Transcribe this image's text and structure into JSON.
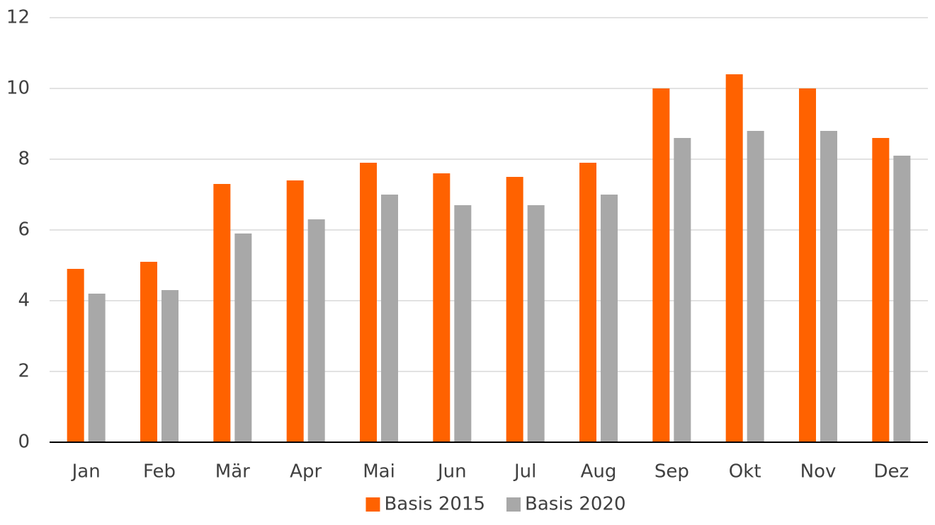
{
  "chart_data": {
    "type": "bar",
    "categories": [
      "Jan",
      "Feb",
      "Mär",
      "Apr",
      "Mai",
      "Jun",
      "Jul",
      "Aug",
      "Sep",
      "Okt",
      "Nov",
      "Dez"
    ],
    "series": [
      {
        "name": "Basis 2015",
        "color": "#ff6200",
        "values": [
          4.9,
          5.1,
          7.3,
          7.4,
          7.9,
          7.6,
          7.5,
          7.9,
          10.0,
          10.4,
          10.0,
          8.6
        ]
      },
      {
        "name": "Basis 2020",
        "color": "#a8a8a8",
        "values": [
          4.2,
          4.3,
          5.9,
          6.3,
          7.0,
          6.7,
          6.7,
          7.0,
          8.6,
          8.8,
          8.8,
          8.1
        ]
      }
    ],
    "ylim": [
      0,
      12
    ],
    "yticks": [
      0,
      2,
      4,
      6,
      8,
      10,
      12
    ],
    "grid": true,
    "legend": "bottom"
  }
}
